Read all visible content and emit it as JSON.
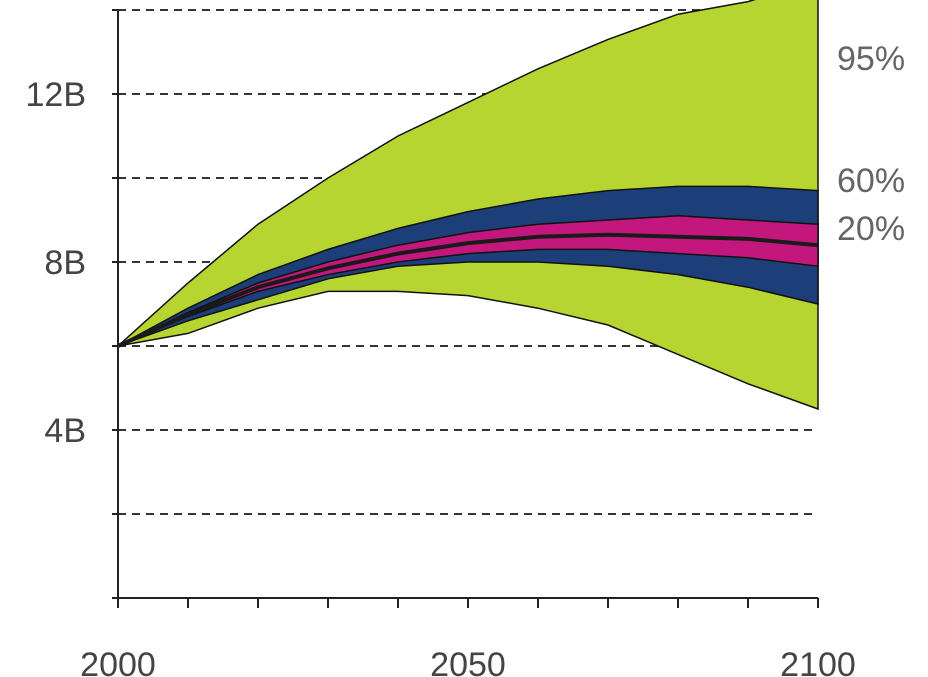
{
  "chart_data": {
    "type": "area",
    "title": "",
    "xlabel": "",
    "ylabel": "",
    "xlim": [
      2000,
      2100
    ],
    "ylim": [
      0,
      14000000000
    ],
    "grid": true,
    "x_ticks": [
      2000,
      2050,
      2100
    ],
    "x_tick_labels": [
      "2000",
      "2050",
      "2100"
    ],
    "y_ticks": [
      4000000000,
      8000000000,
      12000000000
    ],
    "y_tick_labels": [
      "4B",
      "8B",
      "12B"
    ],
    "x": [
      2000,
      2010,
      2020,
      2030,
      2040,
      2050,
      2060,
      2070,
      2080,
      2090,
      2100
    ],
    "series": [
      {
        "name": "95%",
        "color": "#b7d531",
        "upper": [
          6000000000,
          7500000000,
          8900000000,
          10000000000,
          11000000000,
          11800000000,
          12600000000,
          13300000000,
          13900000000,
          14200000000,
          14700000000
        ],
        "lower": [
          6000000000,
          6300000000,
          6900000000,
          7300000000,
          7300000000,
          7200000000,
          6900000000,
          6500000000,
          5800000000,
          5100000000,
          4500000000
        ]
      },
      {
        "name": "60%",
        "color": "#1c3f7a",
        "upper": [
          6000000000,
          6900000000,
          7700000000,
          8300000000,
          8800000000,
          9200000000,
          9500000000,
          9700000000,
          9800000000,
          9800000000,
          9700000000
        ],
        "lower": [
          6000000000,
          6600000000,
          7100000000,
          7600000000,
          7900000000,
          8000000000,
          8000000000,
          7900000000,
          7700000000,
          7400000000,
          7000000000
        ]
      },
      {
        "name": "20%",
        "color": "#c4177e",
        "upper": [
          6000000000,
          6800000000,
          7500000000,
          8000000000,
          8400000000,
          8700000000,
          8900000000,
          9000000000,
          9100000000,
          9000000000,
          8900000000
        ],
        "lower": [
          6000000000,
          6700000000,
          7300000000,
          7700000000,
          8000000000,
          8200000000,
          8300000000,
          8300000000,
          8200000000,
          8100000000,
          7900000000
        ]
      }
    ],
    "median": [
      6000000000,
      6750000000,
      7400000000,
      7850000000,
      8200000000,
      8450000000,
      8600000000,
      8650000000,
      8600000000,
      8550000000,
      8400000000
    ]
  }
}
